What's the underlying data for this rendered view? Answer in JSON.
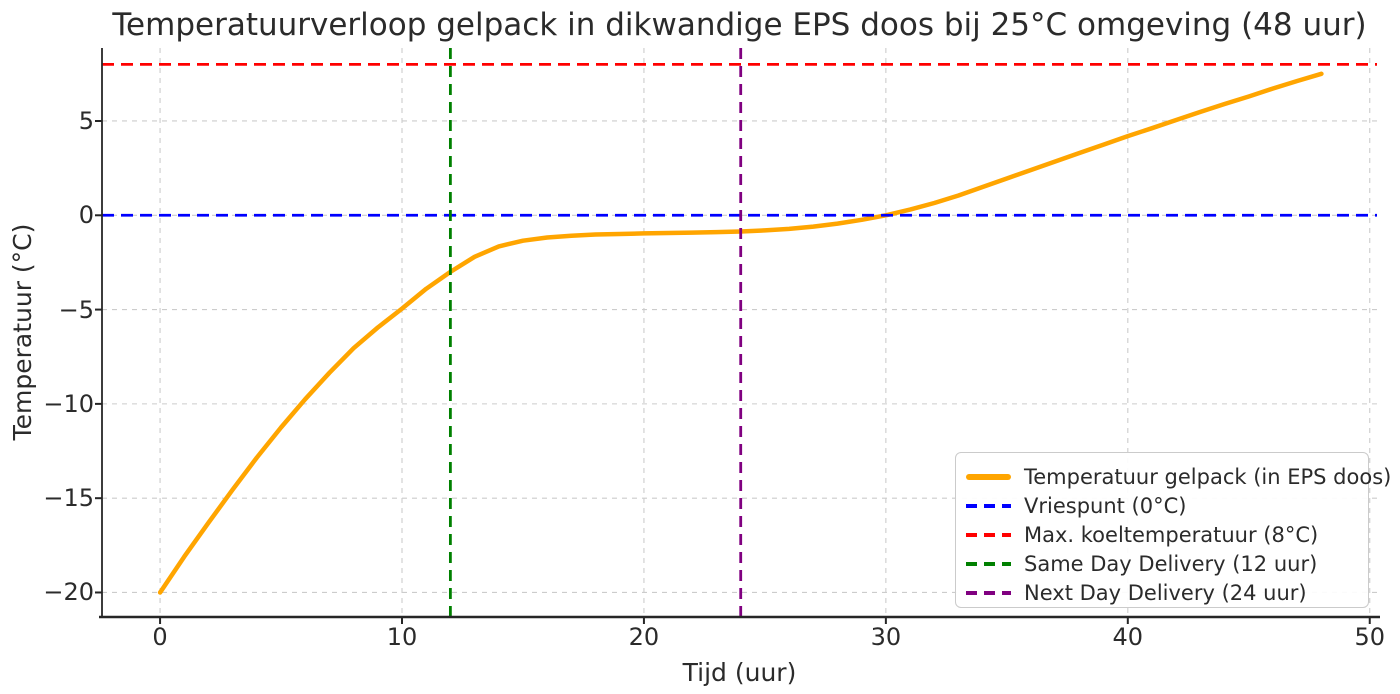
{
  "chart_data": {
    "type": "line",
    "title": "Temperatuurverloop gelpack in dikwandige EPS doos bij 25°C omgeving (48 uur)",
    "xlabel": "Tijd (uur)",
    "ylabel": "Temperatuur (°C)",
    "xlim": [
      -2.4,
      50.3
    ],
    "ylim": [
      -21.3,
      8.87
    ],
    "xticks": [
      0,
      10,
      20,
      30,
      40,
      50
    ],
    "xticklabels": [
      "0",
      "10",
      "20",
      "30",
      "40",
      "50"
    ],
    "yticks": [
      -20,
      -15,
      -10,
      -5,
      0,
      5
    ],
    "yticklabels": [
      "−20",
      "−15",
      "−10",
      "−5",
      "0",
      "5"
    ],
    "grid": true,
    "grid_color": "#cccccc",
    "axis_color": "#262626",
    "text_color": "#2b2b2b",
    "legend_position": "lower right",
    "series": [
      {
        "name": "Temperatuur gelpack (in EPS doos)",
        "kind": "line",
        "color": "#FFA500",
        "style": "solid",
        "x": [
          0,
          1,
          2,
          3,
          4,
          5,
          6,
          7,
          8,
          9,
          10,
          11,
          12,
          13,
          14,
          15,
          16,
          17,
          18,
          19,
          20,
          21,
          22,
          23,
          24,
          25,
          26,
          27,
          28,
          29,
          30,
          31,
          32,
          33,
          34,
          35,
          36,
          37,
          38,
          39,
          40,
          41,
          42,
          43,
          44,
          45,
          46,
          47,
          48
        ],
        "y": [
          -20.0,
          -18.1,
          -16.3,
          -14.55,
          -12.85,
          -11.25,
          -9.75,
          -8.35,
          -7.05,
          -5.95,
          -4.95,
          -3.9,
          -3.0,
          -2.2,
          -1.65,
          -1.35,
          -1.18,
          -1.08,
          -1.02,
          -0.99,
          -0.96,
          -0.94,
          -0.92,
          -0.89,
          -0.86,
          -0.8,
          -0.72,
          -0.6,
          -0.44,
          -0.24,
          0.0,
          0.3,
          0.65,
          1.05,
          1.5,
          1.95,
          2.4,
          2.85,
          3.3,
          3.75,
          4.2,
          4.62,
          5.05,
          5.48,
          5.9,
          6.3,
          6.72,
          7.12,
          7.5
        ]
      },
      {
        "name": "Vriespunt (0°C)",
        "kind": "hline",
        "y": 0,
        "color": "#0000FF",
        "style": "dashed"
      },
      {
        "name": "Max. koeltemperatuur (8°C)",
        "kind": "hline",
        "y": 8,
        "color": "#FF0000",
        "style": "dashed"
      },
      {
        "name": "Same Day Delivery (12 uur)",
        "kind": "vline",
        "x": 12,
        "color": "#008000",
        "style": "dashed"
      },
      {
        "name": "Next Day Delivery (24 uur)",
        "kind": "vline",
        "x": 24,
        "color": "#800080",
        "style": "dashed"
      }
    ]
  }
}
